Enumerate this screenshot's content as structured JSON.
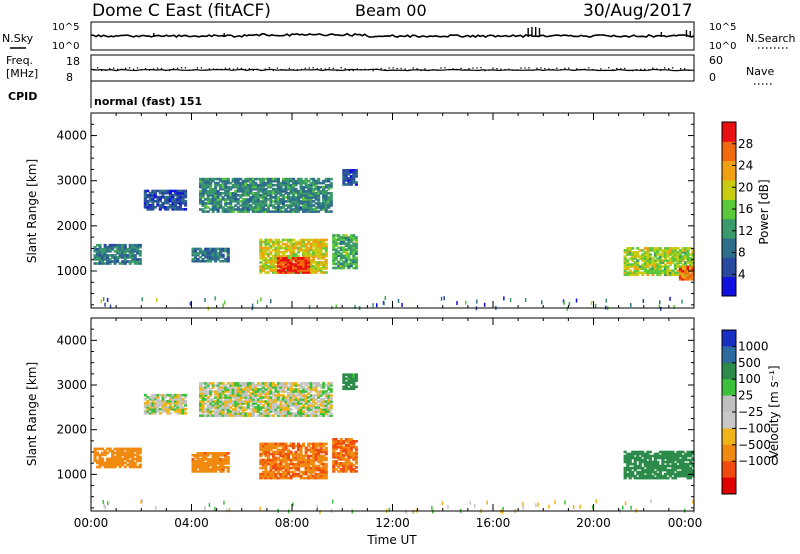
{
  "header": {
    "title": "Dome C East (fitACF)",
    "beam": "Beam 00",
    "date": "30/Aug/2017"
  },
  "status_panels": {
    "nsky_label": "N.Sky",
    "nsearch_label": "N.Search",
    "noise_ticks": [
      "10^5",
      "10^0"
    ],
    "freq_label_1": "Freq.",
    "freq_label_2": "[MHz]",
    "freq_ticks": [
      "18",
      "8"
    ],
    "nave_label": "Nave",
    "nave_ticks": [
      "60",
      "0"
    ],
    "cpid_label": "CPID",
    "cpid_value": "normal (fast) 151"
  },
  "time_axis": {
    "label": "Time UT",
    "ticks": [
      "00:00",
      "04:00",
      "08:00",
      "12:00",
      "16:00",
      "20:00",
      "00:00"
    ]
  },
  "colors": {
    "power_scale": [
      "#1010e0",
      "#2a4aa0",
      "#2f6e8a",
      "#3a9a6a",
      "#5cc83c",
      "#c8cc10",
      "#f0a010",
      "#f06a10",
      "#e81010"
    ],
    "velocity_scale": [
      "#e00000",
      "#f04c10",
      "#f08a10",
      "#f0b418",
      "#c8c8c8",
      "#c0c0c0",
      "#3cc03c",
      "#2c8a4a",
      "#2c6aa0",
      "#1830c0"
    ]
  },
  "chart_data": [
    {
      "type": "heatmap",
      "panel": "power",
      "ylabel": "Slant Range [km]",
      "yticks": [
        "1000",
        "2000",
        "3000",
        "4000"
      ],
      "ylim": [
        180,
        4500
      ],
      "xlim_hours": [
        0,
        24
      ],
      "colorbar": {
        "label": "Power [dB]",
        "ticks": [
          "4",
          "8",
          "12",
          "16",
          "20",
          "24",
          "28"
        ],
        "range": [
          0,
          32
        ]
      },
      "echo_regions": [
        {
          "t0": 0.1,
          "t1": 2.0,
          "r0": 1150,
          "r1": 1600,
          "value": 10
        },
        {
          "t0": 2.1,
          "t1": 3.8,
          "r0": 2350,
          "r1": 2800,
          "value": 6
        },
        {
          "t0": 4.0,
          "t1": 5.4,
          "r0": 1200,
          "r1": 1500,
          "value": 9
        },
        {
          "t0": 4.3,
          "t1": 9.5,
          "r0": 2300,
          "r1": 3050,
          "value": 11
        },
        {
          "t0": 6.7,
          "t1": 9.3,
          "r0": 950,
          "r1": 1700,
          "value": 20
        },
        {
          "t0": 7.4,
          "t1": 8.6,
          "r0": 950,
          "r1": 1300,
          "value": 29
        },
        {
          "t0": 9.6,
          "t1": 10.5,
          "r0": 1050,
          "r1": 1800,
          "value": 14
        },
        {
          "t0": 10.0,
          "t1": 10.5,
          "r0": 2900,
          "r1": 3250,
          "value": 6
        },
        {
          "t0": 21.2,
          "t1": 24.0,
          "r0": 900,
          "r1": 1500,
          "value": 18
        },
        {
          "t0": 23.4,
          "t1": 24.0,
          "r0": 800,
          "r1": 1100,
          "value": 26
        }
      ]
    },
    {
      "type": "heatmap",
      "panel": "velocity",
      "ylabel": "Slant Range [km]",
      "yticks": [
        "1000",
        "2000",
        "3000",
        "4000"
      ],
      "ylim": [
        180,
        4500
      ],
      "xlim_hours": [
        0,
        24
      ],
      "colorbar": {
        "label": "Velocity [m s⁻¹]",
        "ticks": [
          "1000",
          "500",
          "100",
          "25",
          "−25",
          "−100",
          "−500",
          "−1000"
        ]
      },
      "echo_regions": [
        {
          "t0": 0.1,
          "t1": 2.0,
          "r0": 1150,
          "r1": 1600,
          "value": -300
        },
        {
          "t0": 2.1,
          "t1": 3.8,
          "r0": 2350,
          "r1": 2800,
          "value": 0
        },
        {
          "t0": 4.0,
          "t1": 5.4,
          "r0": 1050,
          "r1": 1500,
          "value": -450
        },
        {
          "t0": 4.3,
          "t1": 9.5,
          "r0": 2300,
          "r1": 3050,
          "value": 0
        },
        {
          "t0": 6.7,
          "t1": 9.3,
          "r0": 900,
          "r1": 1700,
          "value": -480
        },
        {
          "t0": 9.6,
          "t1": 10.5,
          "r0": 1050,
          "r1": 1800,
          "value": -500
        },
        {
          "t0": 10.0,
          "t1": 10.5,
          "r0": 2900,
          "r1": 3250,
          "value": 150
        },
        {
          "t0": 21.2,
          "t1": 24.0,
          "r0": 900,
          "r1": 1500,
          "value": 250
        }
      ]
    }
  ]
}
